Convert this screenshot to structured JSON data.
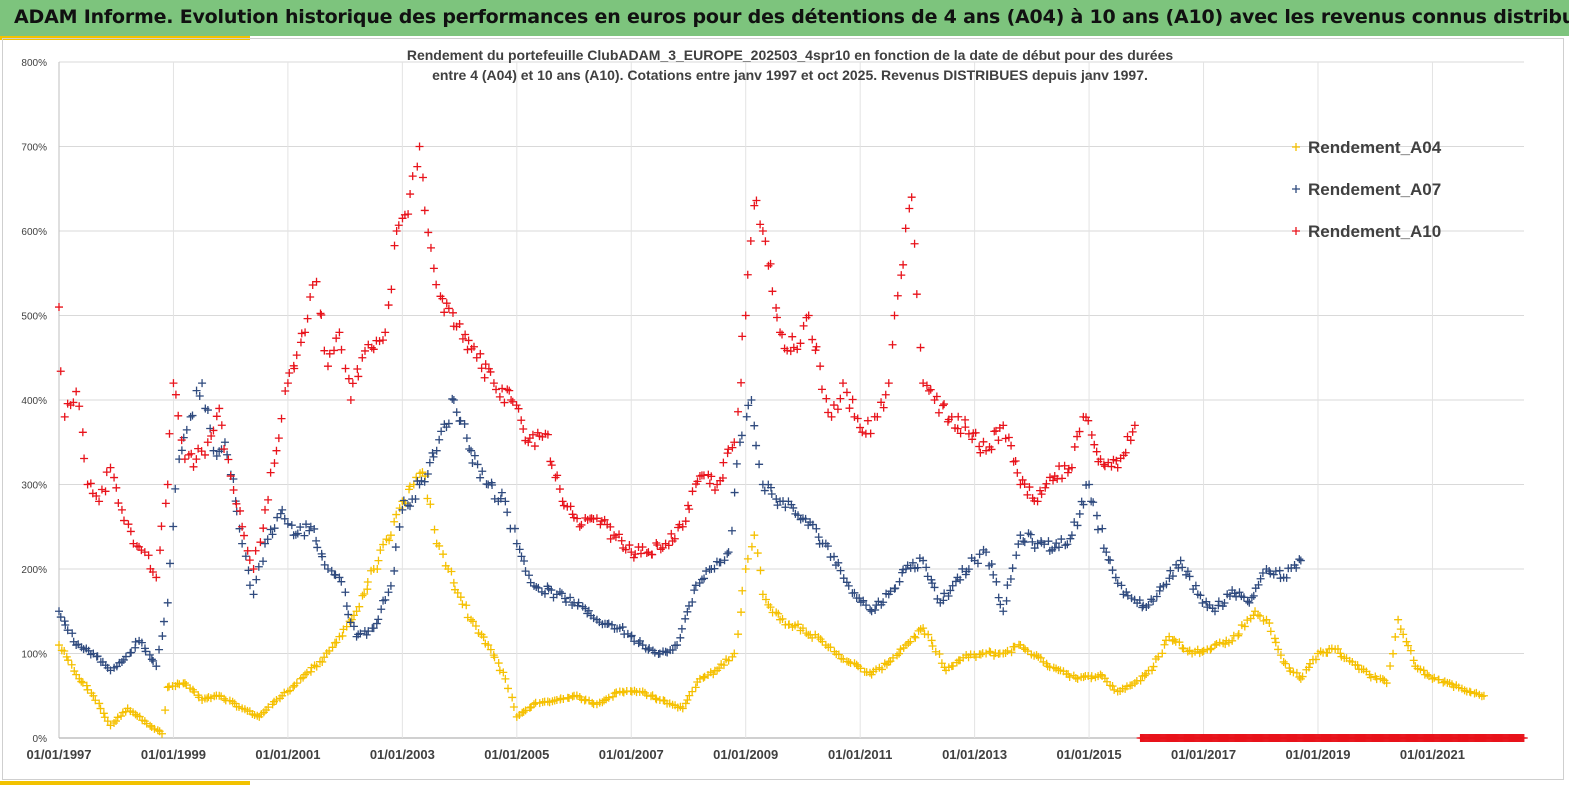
{
  "banner": {
    "title": "ADAM Informe. Evolution historique des performances en euros pour des détentions de 4 ans (A04) à 10 ans (A10) avec les revenus connus distribués"
  },
  "colors": {
    "banner_bg": "#7dc47d",
    "accent": "#f2c200",
    "A04": "#f5c000",
    "A07": "#2f4a7e",
    "A10": "#e8131b"
  },
  "chart_data": {
    "type": "scatter",
    "title_line1": "Rendement du portefeuille ClubADAM_3_EUROPE_202503_4spr10  en fonction de la date de début pour des durées",
    "title_line2": "entre 4 (A04) et 10 ans (A10). Cotations  entre janv 1997 et oct 2025. Revenus DISTRIBUES depuis janv 1997.",
    "xlabel": "",
    "ylabel": "",
    "xlim": [
      1997.0,
      2022.6
    ],
    "ylim": [
      0,
      800
    ],
    "grid": true,
    "legend_position": "top-right",
    "y_ticks": [
      "0%",
      "100%",
      "200%",
      "300%",
      "400%",
      "500%",
      "600%",
      "700%",
      "800%"
    ],
    "x_ticks": [
      {
        "year": 1997,
        "label": "01/01/1997"
      },
      {
        "year": 1999,
        "label": "01/01/1999"
      },
      {
        "year": 2001,
        "label": "01/01/2001"
      },
      {
        "year": 2003,
        "label": "01/01/2003"
      },
      {
        "year": 2005,
        "label": "01/01/2005"
      },
      {
        "year": 2007,
        "label": "01/01/2007"
      },
      {
        "year": 2009,
        "label": "01/01/2009"
      },
      {
        "year": 2011,
        "label": "01/01/2011"
      },
      {
        "year": 2013,
        "label": "01/01/2013"
      },
      {
        "year": 2015,
        "label": "01/01/2015"
      },
      {
        "year": 2017,
        "label": "01/01/2017"
      },
      {
        "year": 2019,
        "label": "01/01/2019"
      },
      {
        "year": 2021,
        "label": "01/01/2021"
      }
    ],
    "series": [
      {
        "name": "Rendement_A04",
        "color": "#f5c000",
        "x": [
          1997.0,
          1997.3,
          1997.6,
          1997.9,
          1998.2,
          1998.5,
          1998.8,
          1998.9,
          1999.2,
          1999.5,
          1999.8,
          2000.2,
          2000.5,
          2000.8,
          2001.0,
          2001.3,
          2001.6,
          2001.9,
          2002.2,
          2002.5,
          2002.8,
          2003.0,
          2003.2,
          2003.4,
          2003.6,
          2003.8,
          2004.2,
          2004.5,
          2004.8,
          2005.0,
          2005.3,
          2005.7,
          2006.0,
          2006.4,
          2006.8,
          2007.2,
          2007.5,
          2007.9,
          2008.2,
          2008.5,
          2008.8,
          2009.0,
          2009.15,
          2009.3,
          2009.6,
          2010.0,
          2010.4,
          2010.8,
          2011.2,
          2011.5,
          2011.8,
          2012.1,
          2012.5,
          2012.8,
          2013.2,
          2013.5,
          2013.8,
          2014.2,
          2014.5,
          2014.8,
          2015.2,
          2015.5,
          2015.8,
          2016.1,
          2016.4,
          2016.8,
          2017.2,
          2017.5,
          2017.9,
          2018.1,
          2018.4,
          2018.7,
          2019.0,
          2019.3,
          2019.6,
          2019.9,
          2020.2,
          2020.4,
          2020.7,
          2021.0,
          2021.3,
          2021.6,
          2021.9
        ],
        "values": [
          110,
          75,
          50,
          15,
          35,
          20,
          5,
          60,
          65,
          45,
          50,
          35,
          25,
          45,
          55,
          75,
          90,
          120,
          150,
          200,
          240,
          280,
          300,
          310,
          230,
          200,
          140,
          110,
          70,
          25,
          40,
          45,
          50,
          40,
          55,
          55,
          45,
          35,
          70,
          80,
          100,
          200,
          240,
          170,
          140,
          130,
          110,
          90,
          75,
          90,
          110,
          130,
          80,
          95,
          100,
          100,
          110,
          90,
          80,
          70,
          75,
          55,
          65,
          80,
          120,
          100,
          110,
          115,
          150,
          140,
          90,
          70,
          100,
          105,
          90,
          75,
          65,
          140,
          85,
          70,
          65,
          55,
          50
        ]
      },
      {
        "name": "Rendement_A07",
        "color": "#2f4a7e",
        "x": [
          1997.0,
          1997.3,
          1997.6,
          1997.9,
          1998.1,
          1998.4,
          1998.7,
          1998.9,
          1999.1,
          1999.3,
          1999.5,
          1999.7,
          1999.9,
          2000.2,
          2000.4,
          2000.6,
          2000.9,
          2001.1,
          2001.4,
          2001.7,
          2001.9,
          2002.2,
          2002.5,
          2002.8,
          2003.0,
          2003.3,
          2003.6,
          2003.9,
          2004.2,
          2004.5,
          2004.8,
          2005.0,
          2005.3,
          2005.7,
          2006.0,
          2006.4,
          2006.8,
          2007.2,
          2007.5,
          2007.8,
          2008.1,
          2008.4,
          2008.7,
          2008.9,
          2009.1,
          2009.3,
          2009.6,
          2010.0,
          2010.4,
          2010.8,
          2011.2,
          2011.5,
          2011.8,
          2012.1,
          2012.4,
          2012.7,
          2013.0,
          2013.2,
          2013.5,
          2013.8,
          2014.1,
          2014.4,
          2014.7,
          2015.0,
          2015.3,
          2015.6,
          2016.0,
          2016.3,
          2016.6,
          2016.9,
          2017.2,
          2017.5,
          2017.8,
          2018.1,
          2018.4,
          2018.7
        ],
        "values": [
          150,
          110,
          100,
          80,
          90,
          115,
          85,
          160,
          330,
          380,
          420,
          340,
          350,
          230,
          170,
          230,
          270,
          240,
          250,
          200,
          190,
          120,
          130,
          180,
          270,
          300,
          340,
          400,
          340,
          300,
          280,
          230,
          180,
          170,
          160,
          140,
          130,
          110,
          100,
          110,
          175,
          200,
          220,
          350,
          400,
          300,
          280,
          260,
          230,
          180,
          150,
          170,
          200,
          210,
          160,
          190,
          210,
          220,
          150,
          240,
          230,
          225,
          240,
          300,
          220,
          170,
          155,
          180,
          210,
          170,
          150,
          175,
          160,
          200,
          190,
          210
        ]
      },
      {
        "name": "Rendement_A10",
        "color": "#e8131b",
        "x": [
          1997.0,
          1997.1,
          1997.3,
          1997.5,
          1997.7,
          1997.9,
          1998.1,
          1998.3,
          1998.5,
          1998.7,
          1998.9,
          1999.0,
          1999.2,
          1999.4,
          1999.6,
          1999.8,
          2000.0,
          2000.2,
          2000.4,
          2000.6,
          2000.8,
          2001.0,
          2001.3,
          2001.5,
          2001.7,
          2001.9,
          2002.1,
          2002.3,
          2002.5,
          2002.7,
          2002.9,
          2003.1,
          2003.3,
          2003.5,
          2003.7,
          2004.0,
          2004.3,
          2004.6,
          2004.9,
          2005.2,
          2005.5,
          2005.8,
          2006.1,
          2006.4,
          2006.7,
          2007.0,
          2007.3,
          2007.6,
          2007.9,
          2008.2,
          2008.5,
          2008.8,
          2009.0,
          2009.15,
          2009.3,
          2009.6,
          2009.9,
          2010.1,
          2010.3,
          2010.5,
          2010.7,
          2010.9,
          2011.1,
          2011.3,
          2011.5,
          2011.6,
          2011.75,
          2011.9,
          2012.1,
          2012.3,
          2012.6,
          2012.9,
          2013.2,
          2013.5,
          2013.8,
          2014.1,
          2014.4,
          2014.7,
          2014.9,
          2015.2,
          2015.5,
          2015.8
        ],
        "values": [
          510,
          380,
          410,
          300,
          280,
          320,
          270,
          230,
          220,
          190,
          300,
          420,
          330,
          330,
          350,
          390,
          310,
          250,
          200,
          270,
          340,
          420,
          480,
          540,
          440,
          480,
          400,
          450,
          460,
          480,
          600,
          620,
          700,
          580,
          520,
          490,
          450,
          420,
          400,
          350,
          360,
          280,
          250,
          260,
          240,
          220,
          220,
          230,
          250,
          310,
          300,
          350,
          500,
          630,
          600,
          480,
          460,
          500,
          440,
          380,
          420,
          380,
          360,
          380,
          420,
          500,
          560,
          640,
          420,
          400,
          380,
          360,
          340,
          370,
          300,
          280,
          310,
          320,
          380,
          330,
          320,
          370
        ]
      }
    ],
    "baseline_band": {
      "from": 2015.9,
      "to": 2022.6,
      "value": 0,
      "series": "Rendement_A10"
    }
  }
}
